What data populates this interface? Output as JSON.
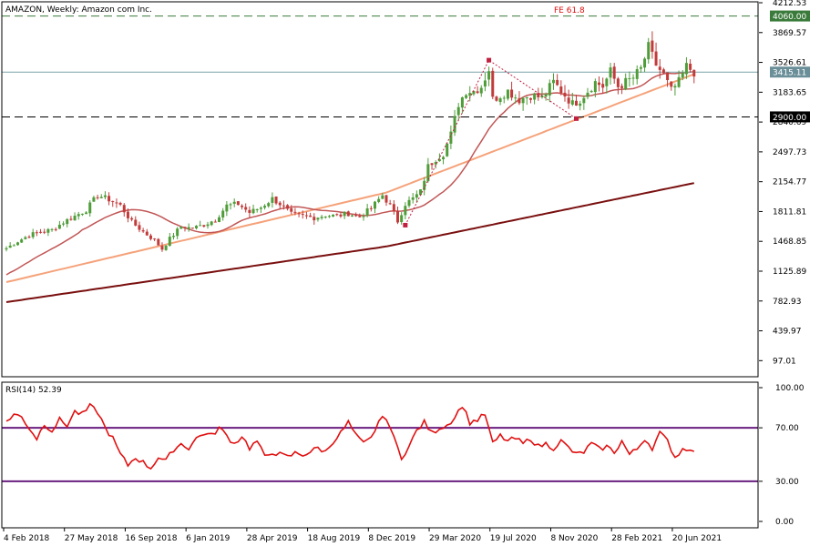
{
  "chart_data": {
    "type": "candlestick",
    "title": "AMAZON, Weekly:  Amazon com Inc.",
    "colors": {
      "bull": "#4f9d3a",
      "bear": "#c23b3b",
      "ma_fast": "#c25656",
      "ma_mid": "#f5a27a",
      "ma_slow": "#7a0f0f",
      "fib_line": "#3a7a3a",
      "fib_label": "#e01010",
      "pattern": "#c02040",
      "rsi": "#e01010",
      "rsi_levels": "#6a1f80",
      "grid_level": "#000000"
    },
    "price_axis": {
      "ylim": [
        -88,
        4212.53
      ],
      "ticks": [
        "4212.53",
        "3869.57",
        "3526.61",
        "3183.65",
        "2840.69",
        "2497.73",
        "2154.77",
        "1811.81",
        "1468.85",
        "1125.89",
        "782.93",
        "439.97",
        "97.01"
      ]
    },
    "x_labels": [
      "4 Feb 2018",
      "27 May 2018",
      "16 Sep 2018",
      "6 Jan 2019",
      "28 Apr 2019",
      "18 Aug 2019",
      "8 Dec 2019",
      "29 Mar 2020",
      "19 Jul 2020",
      "8 Nov 2020",
      "28 Feb 2021",
      "20 Jun 2021"
    ],
    "weeks": 182,
    "close_anchors": [
      [
        0,
        1390
      ],
      [
        3,
        1470
      ],
      [
        6,
        1540
      ],
      [
        9,
        1580
      ],
      [
        12,
        1600
      ],
      [
        15,
        1690
      ],
      [
        18,
        1760
      ],
      [
        21,
        1830
      ],
      [
        24,
        2000
      ],
      [
        27,
        1950
      ],
      [
        30,
        1880
      ],
      [
        33,
        1690
      ],
      [
        36,
        1580
      ],
      [
        39,
        1480
      ],
      [
        41,
        1380
      ],
      [
        43,
        1500
      ],
      [
        46,
        1640
      ],
      [
        49,
        1620
      ],
      [
        52,
        1660
      ],
      [
        55,
        1720
      ],
      [
        58,
        1880
      ],
      [
        61,
        1900
      ],
      [
        64,
        1800
      ],
      [
        67,
        1860
      ],
      [
        70,
        1960
      ],
      [
        72,
        1900
      ],
      [
        75,
        1780
      ],
      [
        78,
        1760
      ],
      [
        81,
        1740
      ],
      [
        84,
        1770
      ],
      [
        87,
        1760
      ],
      [
        90,
        1790
      ],
      [
        93,
        1750
      ],
      [
        96,
        1850
      ],
      [
        99,
        2000
      ],
      [
        101,
        1880
      ],
      [
        103,
        1700
      ],
      [
        105,
        1900
      ],
      [
        107,
        1960
      ],
      [
        109,
        2040
      ],
      [
        111,
        2330
      ],
      [
        113,
        2420
      ],
      [
        115,
        2480
      ],
      [
        117,
        2700
      ],
      [
        119,
        3050
      ],
      [
        121,
        3200
      ],
      [
        123,
        3200
      ],
      [
        125,
        3250
      ],
      [
        127,
        3450
      ],
      [
        128,
        3100
      ],
      [
        130,
        3150
      ],
      [
        132,
        3200
      ],
      [
        135,
        3100
      ],
      [
        138,
        3150
      ],
      [
        141,
        3120
      ],
      [
        144,
        3300
      ],
      [
        147,
        3150
      ],
      [
        149,
        3050
      ],
      [
        151,
        3100
      ],
      [
        153,
        3200
      ],
      [
        155,
        3300
      ],
      [
        157,
        3250
      ],
      [
        159,
        3420
      ],
      [
        161,
        3250
      ],
      [
        163,
        3300
      ],
      [
        165,
        3350
      ],
      [
        167,
        3450
      ],
      [
        169,
        3700
      ],
      [
        171,
        3500
      ],
      [
        173,
        3380
      ],
      [
        175,
        3200
      ],
      [
        177,
        3300
      ],
      [
        179,
        3480
      ],
      [
        181,
        3415
      ]
    ],
    "levels": [
      {
        "value": 4060.0,
        "label": "4060.00",
        "style": "dashed"
      },
      {
        "value": 2900.0,
        "label": "2900.00",
        "style": "dashed"
      },
      {
        "value": 3415.11,
        "label": "3415.11",
        "style": "solid"
      }
    ],
    "fib_label": "FE 61.8",
    "pattern_points": [
      [
        105,
        1655
      ],
      [
        127,
        3552
      ],
      [
        150,
        2880
      ]
    ],
    "rsi": {
      "label": "RSI(14) 52.39",
      "ylim": [
        0,
        100
      ],
      "ticks": [
        "100.00",
        "70.00",
        "30.00",
        "0.00"
      ],
      "levels": [
        70,
        30
      ],
      "anchors": [
        [
          0,
          75
        ],
        [
          2,
          80
        ],
        [
          4,
          78
        ],
        [
          6,
          70
        ],
        [
          8,
          62
        ],
        [
          10,
          73
        ],
        [
          12,
          68
        ],
        [
          14,
          76
        ],
        [
          16,
          72
        ],
        [
          18,
          82
        ],
        [
          20,
          80
        ],
        [
          22,
          86
        ],
        [
          24,
          82
        ],
        [
          26,
          70
        ],
        [
          28,
          62
        ],
        [
          30,
          50
        ],
        [
          32,
          42
        ],
        [
          34,
          48
        ],
        [
          36,
          44
        ],
        [
          38,
          40
        ],
        [
          40,
          48
        ],
        [
          42,
          45
        ],
        [
          44,
          54
        ],
        [
          46,
          58
        ],
        [
          48,
          55
        ],
        [
          50,
          62
        ],
        [
          52,
          66
        ],
        [
          54,
          64
        ],
        [
          56,
          70
        ],
        [
          58,
          64
        ],
        [
          60,
          58
        ],
        [
          62,
          64
        ],
        [
          64,
          55
        ],
        [
          66,
          60
        ],
        [
          68,
          48
        ],
        [
          70,
          52
        ],
        [
          72,
          50
        ],
        [
          74,
          48
        ],
        [
          76,
          51
        ],
        [
          78,
          50
        ],
        [
          80,
          52
        ],
        [
          82,
          55
        ],
        [
          84,
          52
        ],
        [
          86,
          60
        ],
        [
          88,
          66
        ],
        [
          90,
          74
        ],
        [
          92,
          64
        ],
        [
          94,
          58
        ],
        [
          96,
          62
        ],
        [
          98,
          75
        ],
        [
          100,
          78
        ],
        [
          102,
          62
        ],
        [
          104,
          48
        ],
        [
          106,
          56
        ],
        [
          108,
          68
        ],
        [
          110,
          74
        ],
        [
          112,
          66
        ],
        [
          114,
          70
        ],
        [
          116,
          72
        ],
        [
          118,
          78
        ],
        [
          120,
          87
        ],
        [
          122,
          74
        ],
        [
          124,
          76
        ],
        [
          126,
          80
        ],
        [
          128,
          58
        ],
        [
          130,
          64
        ],
        [
          132,
          60
        ],
        [
          134,
          62
        ],
        [
          136,
          58
        ],
        [
          138,
          62
        ],
        [
          140,
          56
        ],
        [
          142,
          58
        ],
        [
          144,
          55
        ],
        [
          146,
          60
        ],
        [
          148,
          55
        ],
        [
          150,
          50
        ],
        [
          152,
          52
        ],
        [
          154,
          58
        ],
        [
          156,
          54
        ],
        [
          158,
          56
        ],
        [
          160,
          52
        ],
        [
          162,
          60
        ],
        [
          164,
          50
        ],
        [
          166,
          54
        ],
        [
          168,
          62
        ],
        [
          170,
          55
        ],
        [
          172,
          66
        ],
        [
          174,
          60
        ],
        [
          176,
          48
        ],
        [
          178,
          54
        ],
        [
          180,
          55
        ],
        [
          181,
          52.39
        ]
      ]
    }
  }
}
